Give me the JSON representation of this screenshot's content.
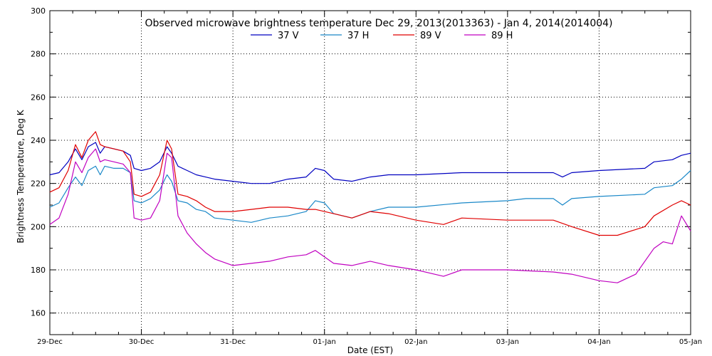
{
  "chart_data": {
    "type": "line",
    "title": "Observed microwave brightness temperature Dec 29, 2013(2013363) - Jan  4, 2014(2014004)",
    "xlabel": "Date (EST)",
    "ylabel": "Brightness Temperature, Deg K",
    "xlim": [
      "2013-12-29",
      "2014-01-05"
    ],
    "ylim": [
      150,
      300
    ],
    "yticks": [
      160,
      180,
      200,
      220,
      240,
      260,
      280,
      300
    ],
    "xtick_labels": [
      "29-Dec",
      "30-Dec",
      "31-Dec",
      "01-Jan",
      "02-Jan",
      "03-Jan",
      "04-Jan",
      "05-Jan"
    ],
    "grid": true,
    "legend": "top-center",
    "x_unit": "days",
    "series": [
      {
        "name": "37 V",
        "color": "#0000c0",
        "points": [
          [
            0,
            224
          ],
          [
            0.1,
            225
          ],
          [
            0.2,
            230
          ],
          [
            0.28,
            236
          ],
          [
            0.35,
            231
          ],
          [
            0.42,
            237
          ],
          [
            0.5,
            239
          ],
          [
            0.55,
            234
          ],
          [
            0.6,
            237
          ],
          [
            0.7,
            236
          ],
          [
            0.8,
            235
          ],
          [
            0.88,
            233
          ],
          [
            0.92,
            227
          ],
          [
            1.0,
            226
          ],
          [
            1.1,
            227
          ],
          [
            1.2,
            230
          ],
          [
            1.28,
            237
          ],
          [
            1.33,
            234
          ],
          [
            1.4,
            228
          ],
          [
            1.5,
            226
          ],
          [
            1.6,
            224
          ],
          [
            1.7,
            223
          ],
          [
            1.8,
            222
          ],
          [
            2.0,
            221
          ],
          [
            2.2,
            220
          ],
          [
            2.4,
            220
          ],
          [
            2.6,
            222
          ],
          [
            2.8,
            223
          ],
          [
            2.9,
            227
          ],
          [
            3.0,
            226
          ],
          [
            3.1,
            222
          ],
          [
            3.3,
            221
          ],
          [
            3.5,
            223
          ],
          [
            3.7,
            224
          ],
          [
            4.0,
            224
          ],
          [
            4.5,
            225
          ],
          [
            5.0,
            225
          ],
          [
            5.5,
            225
          ],
          [
            5.6,
            223
          ],
          [
            5.7,
            225
          ],
          [
            6.0,
            226
          ],
          [
            6.5,
            227
          ],
          [
            6.6,
            230
          ],
          [
            6.8,
            231
          ],
          [
            6.9,
            233
          ],
          [
            7.0,
            234
          ]
        ]
      },
      {
        "name": "37 H",
        "color": "#1a88c8",
        "points": [
          [
            0,
            209
          ],
          [
            0.1,
            211
          ],
          [
            0.2,
            218
          ],
          [
            0.28,
            223
          ],
          [
            0.35,
            219
          ],
          [
            0.42,
            226
          ],
          [
            0.5,
            228
          ],
          [
            0.55,
            224
          ],
          [
            0.6,
            228
          ],
          [
            0.7,
            227
          ],
          [
            0.8,
            227
          ],
          [
            0.88,
            225
          ],
          [
            0.92,
            212
          ],
          [
            1.0,
            211
          ],
          [
            1.1,
            213
          ],
          [
            1.2,
            217
          ],
          [
            1.28,
            224
          ],
          [
            1.33,
            221
          ],
          [
            1.4,
            212
          ],
          [
            1.5,
            211
          ],
          [
            1.6,
            208
          ],
          [
            1.7,
            207
          ],
          [
            1.8,
            204
          ],
          [
            2.0,
            203
          ],
          [
            2.2,
            202
          ],
          [
            2.4,
            204
          ],
          [
            2.6,
            205
          ],
          [
            2.8,
            207
          ],
          [
            2.9,
            212
          ],
          [
            3.0,
            211
          ],
          [
            3.1,
            206
          ],
          [
            3.3,
            204
          ],
          [
            3.5,
            207
          ],
          [
            3.7,
            209
          ],
          [
            4.0,
            209
          ],
          [
            4.5,
            211
          ],
          [
            5.0,
            212
          ],
          [
            5.2,
            213
          ],
          [
            5.5,
            213
          ],
          [
            5.6,
            210
          ],
          [
            5.7,
            213
          ],
          [
            6.0,
            214
          ],
          [
            6.5,
            215
          ],
          [
            6.6,
            218
          ],
          [
            6.8,
            219
          ],
          [
            6.9,
            222
          ],
          [
            7.0,
            226
          ]
        ]
      },
      {
        "name": "89 V",
        "color": "#e00000",
        "points": [
          [
            0,
            216
          ],
          [
            0.1,
            218
          ],
          [
            0.2,
            226
          ],
          [
            0.28,
            238
          ],
          [
            0.35,
            232
          ],
          [
            0.42,
            240
          ],
          [
            0.5,
            244
          ],
          [
            0.55,
            238
          ],
          [
            0.6,
            237
          ],
          [
            0.7,
            236
          ],
          [
            0.8,
            235
          ],
          [
            0.88,
            230
          ],
          [
            0.92,
            215
          ],
          [
            1.0,
            214
          ],
          [
            1.1,
            216
          ],
          [
            1.2,
            224
          ],
          [
            1.28,
            240
          ],
          [
            1.33,
            236
          ],
          [
            1.4,
            215
          ],
          [
            1.5,
            214
          ],
          [
            1.6,
            212
          ],
          [
            1.7,
            209
          ],
          [
            1.8,
            207
          ],
          [
            2.0,
            207
          ],
          [
            2.2,
            208
          ],
          [
            2.4,
            209
          ],
          [
            2.6,
            209
          ],
          [
            2.8,
            208
          ],
          [
            2.9,
            208
          ],
          [
            3.0,
            207
          ],
          [
            3.1,
            206
          ],
          [
            3.3,
            204
          ],
          [
            3.5,
            207
          ],
          [
            3.7,
            206
          ],
          [
            4.0,
            203
          ],
          [
            4.3,
            201
          ],
          [
            4.5,
            204
          ],
          [
            5.0,
            203
          ],
          [
            5.5,
            203
          ],
          [
            5.7,
            200
          ],
          [
            6.0,
            196
          ],
          [
            6.2,
            196
          ],
          [
            6.5,
            200
          ],
          [
            6.6,
            205
          ],
          [
            6.8,
            210
          ],
          [
            6.9,
            212
          ],
          [
            7.0,
            210
          ]
        ]
      },
      {
        "name": "89 H",
        "color": "#c000c0",
        "points": [
          [
            0,
            201
          ],
          [
            0.1,
            204
          ],
          [
            0.2,
            215
          ],
          [
            0.28,
            230
          ],
          [
            0.35,
            225
          ],
          [
            0.42,
            232
          ],
          [
            0.5,
            236
          ],
          [
            0.55,
            230
          ],
          [
            0.6,
            231
          ],
          [
            0.7,
            230
          ],
          [
            0.8,
            229
          ],
          [
            0.88,
            225
          ],
          [
            0.92,
            204
          ],
          [
            1.0,
            203
          ],
          [
            1.1,
            204
          ],
          [
            1.2,
            212
          ],
          [
            1.28,
            234
          ],
          [
            1.33,
            232
          ],
          [
            1.4,
            205
          ],
          [
            1.5,
            197
          ],
          [
            1.6,
            192
          ],
          [
            1.7,
            188
          ],
          [
            1.8,
            185
          ],
          [
            2.0,
            182
          ],
          [
            2.2,
            183
          ],
          [
            2.4,
            184
          ],
          [
            2.6,
            186
          ],
          [
            2.8,
            187
          ],
          [
            2.9,
            189
          ],
          [
            3.0,
            186
          ],
          [
            3.1,
            183
          ],
          [
            3.3,
            182
          ],
          [
            3.5,
            184
          ],
          [
            3.7,
            182
          ],
          [
            4.0,
            180
          ],
          [
            4.3,
            177
          ],
          [
            4.5,
            180
          ],
          [
            5.0,
            180
          ],
          [
            5.5,
            179
          ],
          [
            5.7,
            178
          ],
          [
            6.0,
            175
          ],
          [
            6.2,
            174
          ],
          [
            6.4,
            178
          ],
          [
            6.6,
            190
          ],
          [
            6.7,
            193
          ],
          [
            6.8,
            192
          ],
          [
            6.9,
            205
          ],
          [
            7.0,
            198
          ]
        ]
      }
    ]
  }
}
